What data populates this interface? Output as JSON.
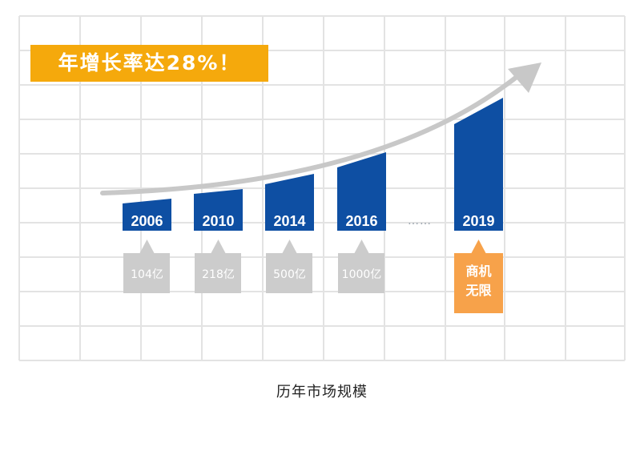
{
  "headline": "年增长率达28%！",
  "caption": "历年市场规模",
  "colors": {
    "bar": "#0e4fa3",
    "label_box": "#cccccc",
    "highlight_box": "#f7a24a",
    "banner": "#f5a90c",
    "grid": "#e3e3e3",
    "arrow": "#c8c8c8"
  },
  "chart_data": {
    "type": "bar",
    "categories": [
      "2006",
      "2010",
      "2014",
      "2016",
      "2019"
    ],
    "values": [
      "104亿",
      "218亿",
      "500亿",
      "1000亿",
      "商机无限"
    ],
    "gap_marker": "……",
    "title": "",
    "xlabel": "",
    "ylabel": "",
    "grid": true,
    "trend_arrow": true
  }
}
